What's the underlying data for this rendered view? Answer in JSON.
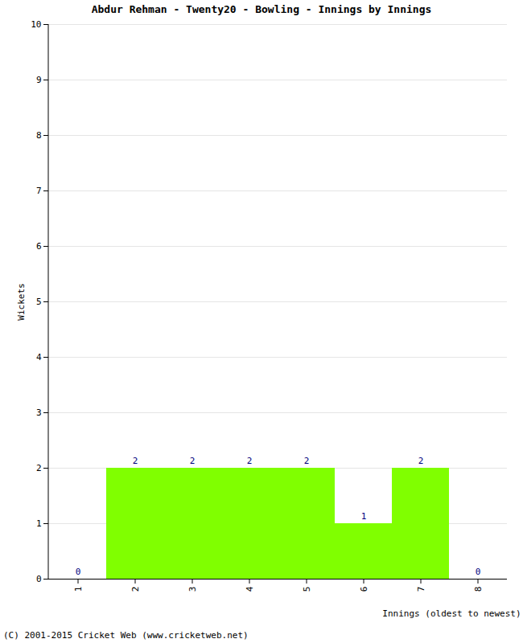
{
  "chart_data": {
    "type": "bar",
    "title": "Abdur Rehman - Twenty20 - Bowling - Innings by Innings",
    "xlabel": "Innings (oldest to newest)",
    "ylabel": "Wickets",
    "categories": [
      "1",
      "2",
      "3",
      "4",
      "5",
      "6",
      "7",
      "8"
    ],
    "values": [
      0,
      2,
      2,
      2,
      2,
      1,
      2,
      0
    ],
    "color": "#80ff00",
    "ylim": [
      0,
      10
    ],
    "yticks": [
      0,
      1,
      2,
      3,
      4,
      5,
      6,
      7,
      8,
      9,
      10
    ],
    "grid": true,
    "data_labels": true,
    "caption": "(C) 2001-2015 Cricket Web (www.cricketweb.net)"
  }
}
